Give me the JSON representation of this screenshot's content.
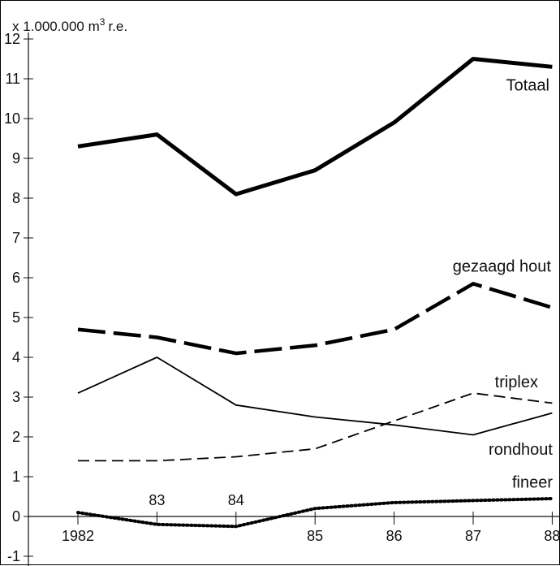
{
  "chart_data": {
    "type": "line",
    "title": "",
    "xlabel": "",
    "ylabel": "x 1.000.000 m3 r.e.",
    "ylabel_main": "x 1.000.000 m",
    "ylabel_sup": "3",
    "ylabel_suffix": "r.e.",
    "x": [
      "1982",
      "83",
      "84",
      "85",
      "86",
      "87",
      "88"
    ],
    "x_tick_labels": [
      "1982",
      "83",
      "84",
      "85",
      "86",
      "87",
      "88"
    ],
    "y_ticks": [
      "-1",
      "0",
      "1",
      "2",
      "3",
      "4",
      "5",
      "6",
      "7",
      "8",
      "9",
      "10",
      "11",
      "12"
    ],
    "ylim": [
      -1,
      12
    ],
    "grid": false,
    "legend": "inline",
    "series": [
      {
        "name": "Totaal",
        "values": [
          9.3,
          9.6,
          8.1,
          8.7,
          9.9,
          11.5,
          11.3
        ],
        "color": "#000000",
        "style": "solid-thick"
      },
      {
        "name": "gezaagd hout",
        "values": [
          4.7,
          4.5,
          4.1,
          4.3,
          4.7,
          5.85,
          5.25
        ],
        "color": "#000000",
        "style": "long-dash-thick"
      },
      {
        "name": "triplex",
        "values": [
          1.4,
          1.4,
          1.5,
          1.7,
          2.4,
          3.1,
          2.85
        ],
        "color": "#000000",
        "style": "dash-thin"
      },
      {
        "name": "rondhout",
        "values": [
          3.1,
          4.0,
          2.8,
          2.5,
          2.3,
          2.05,
          2.6
        ],
        "color": "#000000",
        "style": "solid-thin"
      },
      {
        "name": "fineer",
        "values": [
          0.1,
          -0.2,
          -0.25,
          0.2,
          0.35,
          0.4,
          0.45
        ],
        "color": "#000000",
        "style": "dotted"
      }
    ]
  }
}
